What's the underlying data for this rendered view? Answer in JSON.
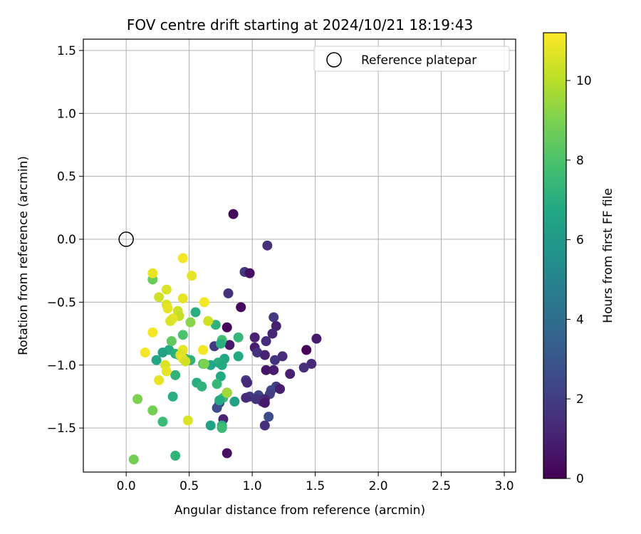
{
  "chart_data": {
    "type": "scatter",
    "title": "FOV centre drift starting at 2024/10/21 18:19:43",
    "xlabel": "Angular distance from reference (arcmin)",
    "ylabel": "Rotation from reference (arcmin)",
    "xlim": [
      -0.34,
      3.09
    ],
    "ylim": [
      -1.85,
      1.59
    ],
    "xticks": [
      0.0,
      0.5,
      1.0,
      1.5,
      2.0,
      2.5,
      3.0
    ],
    "xtick_labels": [
      "0.0",
      "0.5",
      "1.0",
      "1.5",
      "2.0",
      "2.5",
      "3.0"
    ],
    "yticks": [
      -1.5,
      -1.0,
      -0.5,
      0.0,
      0.5,
      1.0,
      1.5
    ],
    "ytick_labels": [
      "−1.5",
      "−1.0",
      "−0.5",
      "0.0",
      "0.5",
      "1.0",
      "1.5"
    ],
    "grid": true,
    "legend": {
      "placement": "top-right",
      "entries": [
        "Reference platepar"
      ]
    },
    "reference_point": {
      "x": 0.0,
      "y": 0.0
    },
    "colorbar": {
      "label": "Hours from first FF file",
      "colormap": "viridis",
      "range": [
        0,
        11.2
      ],
      "ticks": [
        0,
        2,
        4,
        6,
        8,
        10
      ],
      "tick_labels": [
        "0",
        "2",
        "4",
        "6",
        "8",
        "10"
      ]
    },
    "series": [
      {
        "points": [
          {
            "x": 0.85,
            "y": 0.2,
            "c": 0.2
          },
          {
            "x": 1.12,
            "y": -0.05,
            "c": 1.5
          },
          {
            "x": 0.94,
            "y": -0.26,
            "c": 1.8
          },
          {
            "x": 0.98,
            "y": -0.27,
            "c": 0.4
          },
          {
            "x": 0.81,
            "y": -0.43,
            "c": 1.6
          },
          {
            "x": 0.91,
            "y": -0.54,
            "c": 0.3
          },
          {
            "x": 1.17,
            "y": -0.62,
            "c": 1.9
          },
          {
            "x": 1.19,
            "y": -0.69,
            "c": 1.0
          },
          {
            "x": 0.8,
            "y": -0.7,
            "c": 0.2
          },
          {
            "x": 1.16,
            "y": -0.75,
            "c": 1.2
          },
          {
            "x": 1.02,
            "y": -0.78,
            "c": 1.1
          },
          {
            "x": 1.51,
            "y": -0.79,
            "c": 0.8
          },
          {
            "x": 1.11,
            "y": -0.81,
            "c": 1.4
          },
          {
            "x": 0.82,
            "y": -0.84,
            "c": 0.7
          },
          {
            "x": 0.7,
            "y": -0.85,
            "c": 1.9
          },
          {
            "x": 1.02,
            "y": -0.86,
            "c": 0.9
          },
          {
            "x": 1.43,
            "y": -0.88,
            "c": 0.1
          },
          {
            "x": 1.04,
            "y": -0.9,
            "c": 1.6
          },
          {
            "x": 1.1,
            "y": -0.92,
            "c": 1.1
          },
          {
            "x": 1.24,
            "y": -0.93,
            "c": 1.4
          },
          {
            "x": 1.18,
            "y": -0.96,
            "c": 1.6
          },
          {
            "x": 1.47,
            "y": -0.99,
            "c": 1.3
          },
          {
            "x": 1.41,
            "y": -1.02,
            "c": 1.5
          },
          {
            "x": 1.11,
            "y": -1.04,
            "c": 0.6
          },
          {
            "x": 1.17,
            "y": -1.04,
            "c": 0.9
          },
          {
            "x": 1.3,
            "y": -1.07,
            "c": 1.0
          },
          {
            "x": 0.95,
            "y": -1.12,
            "c": 1.8
          },
          {
            "x": 0.96,
            "y": -1.14,
            "c": 1.3
          },
          {
            "x": 1.19,
            "y": -1.17,
            "c": 2.0
          },
          {
            "x": 1.15,
            "y": -1.2,
            "c": 2.4
          },
          {
            "x": 1.22,
            "y": -1.19,
            "c": 0.9
          },
          {
            "x": 0.8,
            "y": -1.22,
            "c": 0.8
          },
          {
            "x": 1.14,
            "y": -1.23,
            "c": 2.1
          },
          {
            "x": 1.05,
            "y": -1.24,
            "c": 2.2
          },
          {
            "x": 0.98,
            "y": -1.25,
            "c": 1.9
          },
          {
            "x": 0.95,
            "y": -1.26,
            "c": 1.4
          },
          {
            "x": 1.03,
            "y": -1.27,
            "c": 1.6
          },
          {
            "x": 1.1,
            "y": -1.27,
            "c": 1.2
          },
          {
            "x": 1.08,
            "y": -1.29,
            "c": 1.5
          },
          {
            "x": 1.1,
            "y": -1.3,
            "c": 0.7
          },
          {
            "x": 0.74,
            "y": -1.3,
            "c": 2.4
          },
          {
            "x": 0.72,
            "y": -1.34,
            "c": 2.6
          },
          {
            "x": 1.13,
            "y": -1.41,
            "c": 2.6
          },
          {
            "x": 0.77,
            "y": -1.43,
            "c": 1.1
          },
          {
            "x": 1.1,
            "y": -1.48,
            "c": 1.5
          },
          {
            "x": 0.8,
            "y": -1.7,
            "c": 0.5
          },
          {
            "x": 0.55,
            "y": -0.58,
            "c": 7.0
          },
          {
            "x": 0.71,
            "y": -0.68,
            "c": 7.2
          },
          {
            "x": 0.89,
            "y": -0.78,
            "c": 7.4
          },
          {
            "x": 0.76,
            "y": -0.8,
            "c": 7.8
          },
          {
            "x": 0.75,
            "y": -0.83,
            "c": 7.0
          },
          {
            "x": 0.34,
            "y": -0.88,
            "c": 6.8
          },
          {
            "x": 0.29,
            "y": -0.9,
            "c": 6.4
          },
          {
            "x": 0.39,
            "y": -0.91,
            "c": 7.0
          },
          {
            "x": 0.42,
            "y": -0.92,
            "c": 7.4
          },
          {
            "x": 0.89,
            "y": -0.93,
            "c": 6.8
          },
          {
            "x": 0.78,
            "y": -0.95,
            "c": 6.6
          },
          {
            "x": 0.47,
            "y": -0.95,
            "c": 7.2
          },
          {
            "x": 0.51,
            "y": -0.96,
            "c": 7.2
          },
          {
            "x": 0.24,
            "y": -0.96,
            "c": 6.6
          },
          {
            "x": 0.73,
            "y": -0.98,
            "c": 7.0
          },
          {
            "x": 0.61,
            "y": -0.99,
            "c": 7.8
          },
          {
            "x": 0.67,
            "y": -1.0,
            "c": 6.6
          },
          {
            "x": 0.76,
            "y": -1.0,
            "c": 6.8
          },
          {
            "x": 0.39,
            "y": -1.08,
            "c": 7.2
          },
          {
            "x": 0.75,
            "y": -1.09,
            "c": 6.8
          },
          {
            "x": 0.56,
            "y": -1.14,
            "c": 7.0
          },
          {
            "x": 0.72,
            "y": -1.15,
            "c": 7.4
          },
          {
            "x": 0.6,
            "y": -1.17,
            "c": 7.2
          },
          {
            "x": 0.37,
            "y": -1.25,
            "c": 7.0
          },
          {
            "x": 0.77,
            "y": -1.26,
            "c": 7.6
          },
          {
            "x": 0.74,
            "y": -1.28,
            "c": 6.8
          },
          {
            "x": 0.86,
            "y": -1.29,
            "c": 6.4
          },
          {
            "x": 0.29,
            "y": -1.45,
            "c": 7.6
          },
          {
            "x": 0.67,
            "y": -1.48,
            "c": 6.4
          },
          {
            "x": 0.76,
            "y": -1.48,
            "c": 7.0
          },
          {
            "x": 0.76,
            "y": -1.5,
            "c": 7.6
          },
          {
            "x": 0.39,
            "y": -1.72,
            "c": 7.2
          },
          {
            "x": 0.21,
            "y": -0.32,
            "c": 8.6
          },
          {
            "x": 0.36,
            "y": -0.81,
            "c": 8.4
          },
          {
            "x": 0.45,
            "y": -0.76,
            "c": 8.0
          },
          {
            "x": 0.51,
            "y": -0.66,
            "c": 9.2
          },
          {
            "x": 0.62,
            "y": -0.99,
            "c": 9.0
          },
          {
            "x": 0.21,
            "y": -1.36,
            "c": 8.8
          },
          {
            "x": 0.09,
            "y": -1.27,
            "c": 9.0
          },
          {
            "x": 0.06,
            "y": -1.75,
            "c": 8.8
          },
          {
            "x": 0.8,
            "y": -1.22,
            "c": 9.6
          },
          {
            "x": 0.45,
            "y": -0.15,
            "c": 11.0
          },
          {
            "x": 0.52,
            "y": -0.29,
            "c": 10.8
          },
          {
            "x": 0.21,
            "y": -0.27,
            "c": 10.8
          },
          {
            "x": 0.32,
            "y": -0.4,
            "c": 10.6
          },
          {
            "x": 0.26,
            "y": -0.46,
            "c": 10.4
          },
          {
            "x": 0.45,
            "y": -0.47,
            "c": 10.8
          },
          {
            "x": 0.62,
            "y": -0.5,
            "c": 11.0
          },
          {
            "x": 0.32,
            "y": -0.52,
            "c": 10.6
          },
          {
            "x": 0.33,
            "y": -0.55,
            "c": 10.8
          },
          {
            "x": 0.41,
            "y": -0.57,
            "c": 10.4
          },
          {
            "x": 0.42,
            "y": -0.61,
            "c": 10.2
          },
          {
            "x": 0.37,
            "y": -0.63,
            "c": 10.8
          },
          {
            "x": 0.35,
            "y": -0.65,
            "c": 10.6
          },
          {
            "x": 0.65,
            "y": -0.65,
            "c": 10.4
          },
          {
            "x": 0.21,
            "y": -0.74,
            "c": 11.0
          },
          {
            "x": 0.61,
            "y": -0.88,
            "c": 11.0
          },
          {
            "x": 0.45,
            "y": -0.88,
            "c": 10.8
          },
          {
            "x": 0.15,
            "y": -0.9,
            "c": 11.0
          },
          {
            "x": 0.43,
            "y": -0.92,
            "c": 10.6
          },
          {
            "x": 0.45,
            "y": -0.95,
            "c": 10.8
          },
          {
            "x": 0.47,
            "y": -0.97,
            "c": 10.4
          },
          {
            "x": 0.31,
            "y": -1.0,
            "c": 10.6
          },
          {
            "x": 0.32,
            "y": -1.05,
            "c": 10.8
          },
          {
            "x": 0.26,
            "y": -1.12,
            "c": 10.8
          },
          {
            "x": 0.49,
            "y": -1.44,
            "c": 10.6
          }
        ]
      }
    ]
  }
}
